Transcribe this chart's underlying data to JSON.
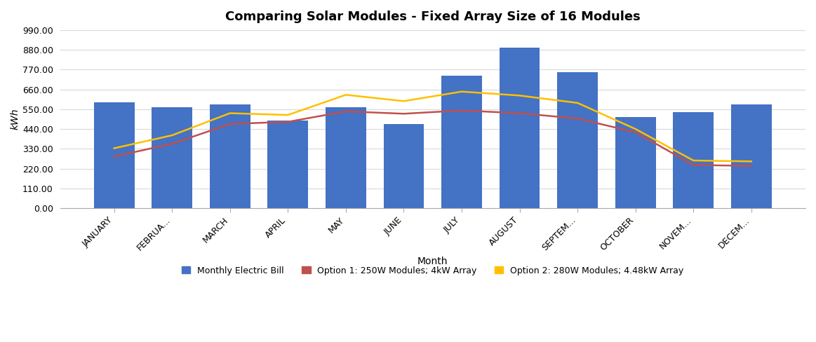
{
  "title": "Comparing Solar Modules - Fixed Array Size of 16 Modules",
  "xlabel": "Month",
  "ylabel": "kWh",
  "categories": [
    "JANUARY",
    "FEBRUA...",
    "MARCH",
    "APRIL",
    "MAY",
    "JUNE",
    "JULY",
    "AUGUST",
    "SEPTEM...",
    "OCTOBER",
    "NOVEM...",
    "DECEM..."
  ],
  "bar_values": [
    590,
    562,
    575,
    487,
    560,
    468,
    737,
    893,
    755,
    508,
    533,
    578
  ],
  "bar_color": "#4472C4",
  "line1_values": [
    287,
    358,
    468,
    480,
    538,
    525,
    543,
    528,
    498,
    422,
    240,
    235
  ],
  "line1_color": "#C0504D",
  "line1_label": "Option 1: 250W Modules; 4kW Array",
  "line2_values": [
    333,
    405,
    528,
    518,
    630,
    595,
    648,
    626,
    585,
    440,
    265,
    260
  ],
  "line2_color": "#FFC000",
  "line2_label": "Option 2: 280W Modules; 4.48kW Array",
  "bar_label": "Monthly Electric Bill",
  "ylim": [
    0,
    990
  ],
  "yticks": [
    0.0,
    110.0,
    220.0,
    330.0,
    440.0,
    550.0,
    660.0,
    770.0,
    880.0,
    990.0
  ],
  "background_color": "#FFFFFF",
  "plot_bg_color": "#FFFFFF",
  "grid_color": "#D9D9D9",
  "title_fontsize": 13,
  "tick_fontsize": 9,
  "label_fontsize": 10,
  "bar_width": 0.7
}
